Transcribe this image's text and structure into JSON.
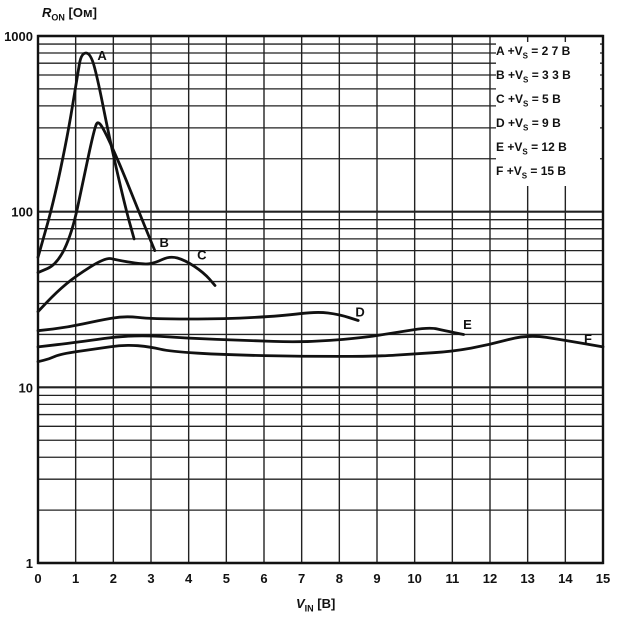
{
  "chart_data": {
    "type": "line",
    "ylabel": {
      "symbol": "R",
      "sub": "ON",
      "unit": "[Ом]"
    },
    "xlabel": {
      "symbol": "V",
      "sub": "IN",
      "unit": "[B]"
    },
    "x_ticks": [
      "0",
      "1",
      "2",
      "3",
      "4",
      "5",
      "6",
      "7",
      "8",
      "9",
      "10",
      "11",
      "12",
      "13",
      "14",
      "15"
    ],
    "y_ticks": [
      {
        "value": 1,
        "label": "1"
      },
      {
        "value": 10,
        "label": "10"
      },
      {
        "value": 100,
        "label": "100"
      },
      {
        "value": 1000,
        "label": "1000"
      }
    ],
    "xlim": [
      0,
      15
    ],
    "ylim": [
      1,
      1000
    ],
    "y_scale": "log",
    "grid": true,
    "legend_position": "top-right",
    "legend": [
      {
        "letter": "A",
        "text_pre": "+V",
        "sub": "S",
        "text_post": "= 2 7 B"
      },
      {
        "letter": "B",
        "text_pre": "+V",
        "sub": "S",
        "text_post": "= 3 3 B"
      },
      {
        "letter": "C",
        "text_pre": "+V",
        "sub": "S",
        "text_post": "= 5 B"
      },
      {
        "letter": "D",
        "text_pre": "+V",
        "sub": "S",
        "text_post": "= 9 B"
      },
      {
        "letter": "E",
        "text_pre": "+V",
        "sub": "S",
        "text_post": "= 12 B"
      },
      {
        "letter": "F",
        "text_pre": "+V",
        "sub": "S",
        "text_post": "= 15 B"
      }
    ],
    "series": [
      {
        "name": "A",
        "label_at": [
          1.7,
          780
        ],
        "points": [
          [
            0,
            55
          ],
          [
            0.4,
            110
          ],
          [
            0.8,
            280
          ],
          [
            1.05,
            600
          ],
          [
            1.15,
            800
          ],
          [
            1.4,
            800
          ],
          [
            1.6,
            550
          ],
          [
            1.9,
            260
          ],
          [
            2.3,
            110
          ],
          [
            2.55,
            70
          ]
        ]
      },
      {
        "name": "B",
        "label_at": [
          3.35,
          67
        ],
        "points": [
          [
            0,
            45
          ],
          [
            0.5,
            50
          ],
          [
            0.9,
            75
          ],
          [
            1.2,
            150
          ],
          [
            1.5,
            300
          ],
          [
            1.6,
            330
          ],
          [
            1.8,
            280
          ],
          [
            2.2,
            180
          ],
          [
            2.6,
            110
          ],
          [
            3.1,
            60
          ]
        ]
      },
      {
        "name": "C",
        "label_at": [
          4.35,
          57
        ],
        "points": [
          [
            0,
            27
          ],
          [
            0.5,
            35
          ],
          [
            1,
            43
          ],
          [
            1.8,
            55
          ],
          [
            2.1,
            53
          ],
          [
            2.8,
            50
          ],
          [
            3.1,
            51
          ],
          [
            3.5,
            56
          ],
          [
            3.9,
            53
          ],
          [
            4.4,
            45
          ],
          [
            4.7,
            38
          ]
        ]
      },
      {
        "name": "D",
        "label_at": [
          8.55,
          27
        ],
        "points": [
          [
            0,
            21
          ],
          [
            0.8,
            22
          ],
          [
            1.6,
            24
          ],
          [
            2.3,
            25.5
          ],
          [
            3,
            24.5
          ],
          [
            5,
            24.5
          ],
          [
            6.5,
            25.5
          ],
          [
            7.4,
            27
          ],
          [
            8,
            26
          ],
          [
            8.5,
            24
          ]
        ]
      },
      {
        "name": "E",
        "label_at": [
          11.4,
          23
        ],
        "points": [
          [
            0,
            17
          ],
          [
            1,
            18
          ],
          [
            2.5,
            20
          ],
          [
            4,
            19
          ],
          [
            5.5,
            18.5
          ],
          [
            7,
            18
          ],
          [
            8.5,
            19
          ],
          [
            9.5,
            20.5
          ],
          [
            10.4,
            22
          ],
          [
            10.8,
            21
          ],
          [
            11.3,
            20
          ]
        ]
      },
      {
        "name": "F",
        "label_at": [
          14.6,
          19
        ],
        "points": [
          [
            0,
            14
          ],
          [
            0.3,
            14.5
          ],
          [
            0.6,
            15.5
          ],
          [
            1.5,
            16.5
          ],
          [
            2.3,
            17.5
          ],
          [
            3,
            17
          ],
          [
            3.5,
            16
          ],
          [
            5,
            15.3
          ],
          [
            7,
            15
          ],
          [
            9,
            15
          ],
          [
            10,
            15.5
          ],
          [
            11,
            16
          ],
          [
            12,
            17.5
          ],
          [
            13,
            20
          ],
          [
            14,
            18.5
          ],
          [
            15,
            17
          ]
        ]
      }
    ]
  }
}
